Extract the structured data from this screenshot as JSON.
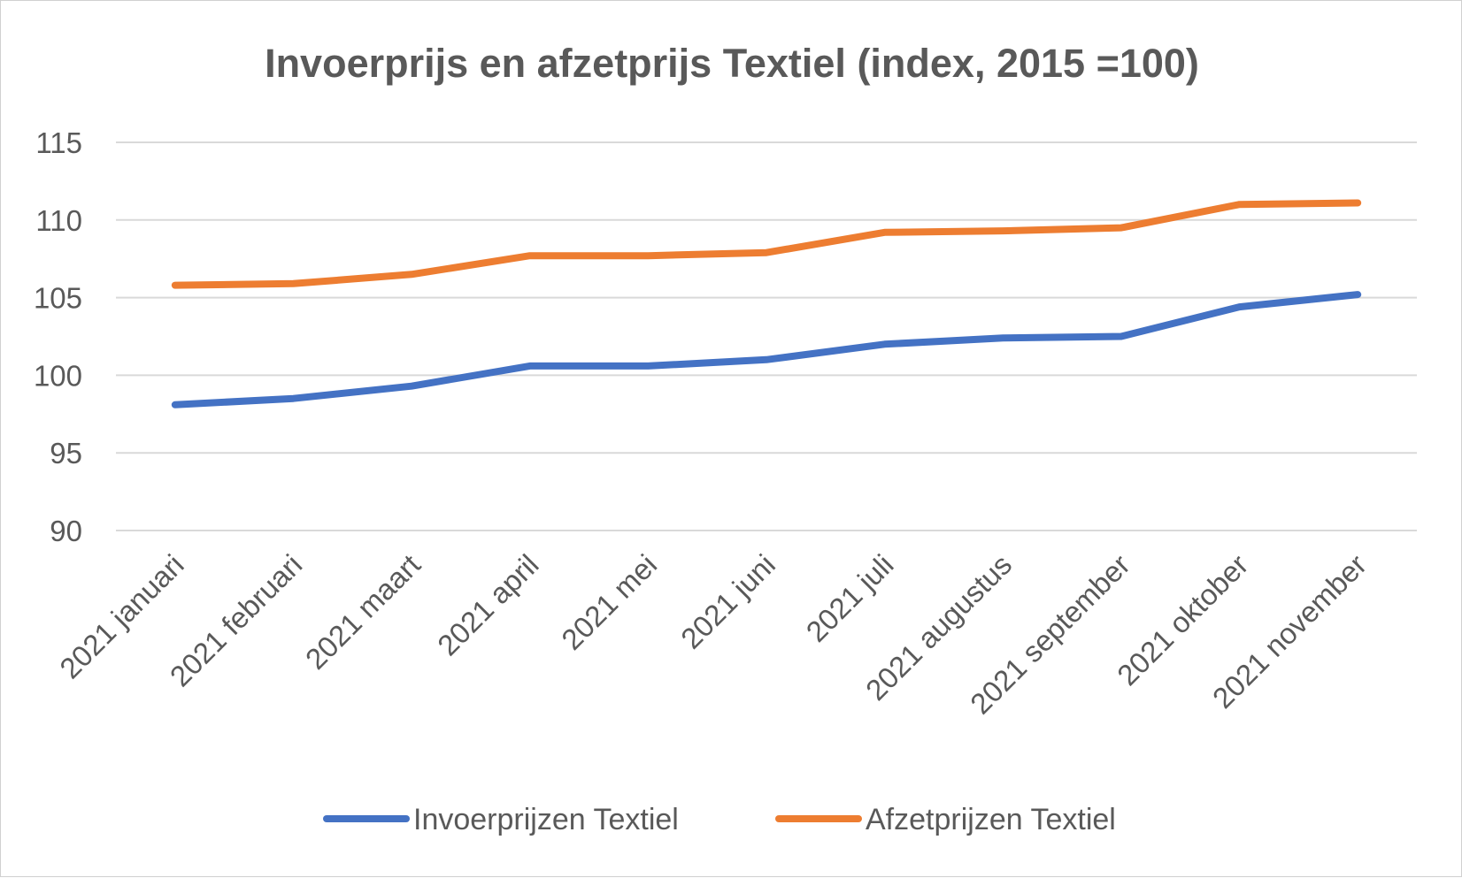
{
  "chart_data": {
    "type": "line",
    "title": "Invoerprijs en afzetprijs Textiel (index, 2015 =100)",
    "xlabel": "",
    "ylabel": "",
    "categories": [
      "2021 januari",
      "2021 februari",
      "2021 maart",
      "2021 april",
      "2021 mei",
      "2021 juni",
      "2021 juli",
      "2021 augustus",
      "2021 september",
      "2021 oktober",
      "2021 november"
    ],
    "series": [
      {
        "name": "Invoerprijzen Textiel",
        "color": "#4472C4",
        "values": [
          98.1,
          98.5,
          99.3,
          100.6,
          100.6,
          101.0,
          102.0,
          102.4,
          102.5,
          104.4,
          105.2
        ]
      },
      {
        "name": "Afzetprijzen Textiel",
        "color": "#ED7D31",
        "values": [
          105.8,
          105.9,
          106.5,
          107.7,
          107.7,
          107.9,
          109.2,
          109.3,
          109.5,
          111.0,
          111.1
        ]
      }
    ],
    "ylim": [
      90,
      115
    ],
    "yticks": [
      90,
      95,
      100,
      105,
      110,
      115
    ],
    "grid": true,
    "legend": "bottom"
  }
}
